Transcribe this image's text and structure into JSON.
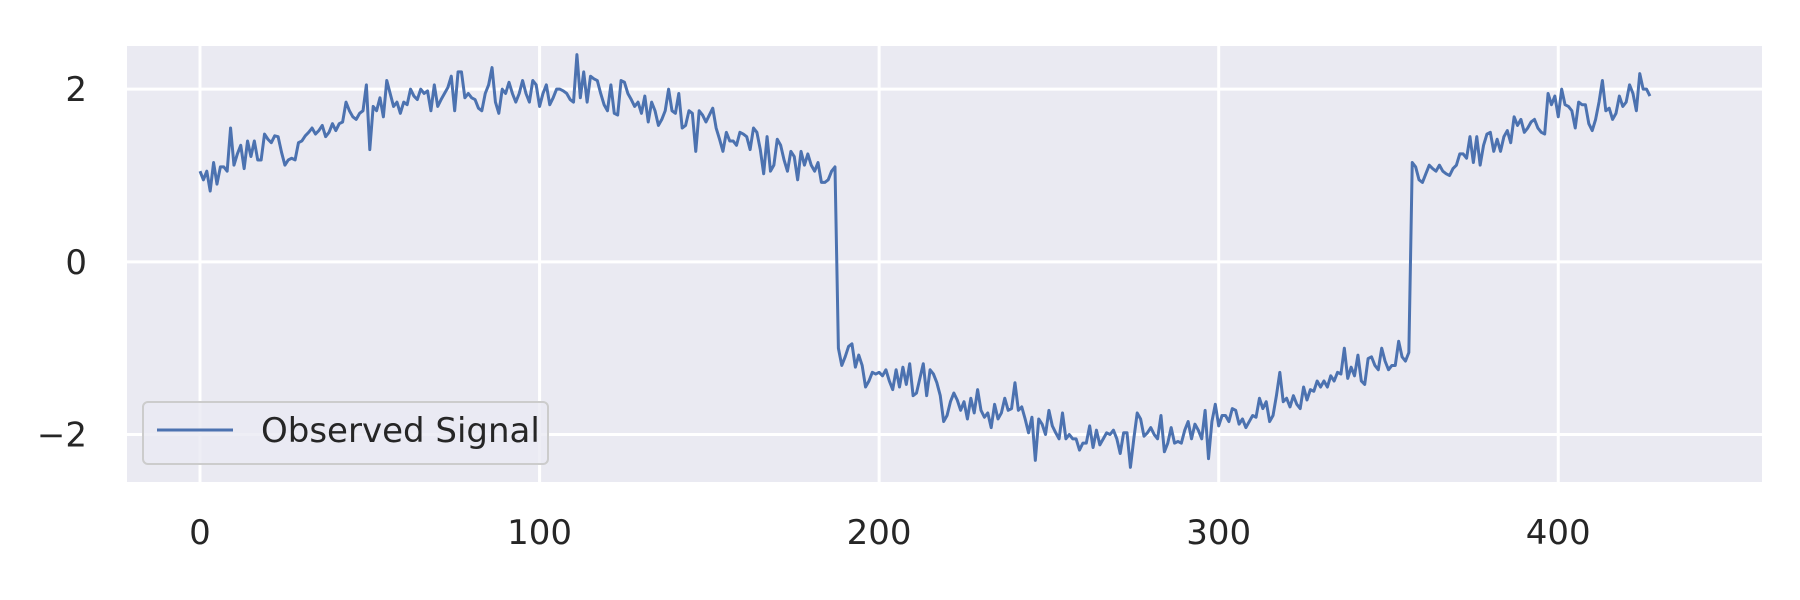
{
  "colors": {
    "plot_background": "#eaeaf2",
    "grid": "#ffffff",
    "series": "#4c72b0",
    "text": "#262626",
    "legend_border": "#cccccc"
  },
  "chart_data": {
    "type": "line",
    "title": "",
    "xlabel": "",
    "ylabel": "",
    "xlim": [
      -21.5,
      460
    ],
    "ylim": [
      -2.55,
      2.5
    ],
    "grid": true,
    "legend_position": "lower-left",
    "x_ticks": [
      {
        "value": 0,
        "label": "0"
      },
      {
        "value": 100,
        "label": "100"
      },
      {
        "value": 200,
        "label": "200"
      },
      {
        "value": 300,
        "label": "300"
      },
      {
        "value": 400,
        "label": "400"
      }
    ],
    "y_ticks": [
      {
        "value": -2,
        "label": "−2"
      },
      {
        "value": 0,
        "label": "0"
      },
      {
        "value": 2,
        "label": "2"
      }
    ],
    "series": [
      {
        "name": "Observed Signal",
        "x_start": 0,
        "x_step": 1,
        "values": [
          1.05,
          0.95,
          1.05,
          0.82,
          1.15,
          0.9,
          1.1,
          1.1,
          1.05,
          1.55,
          1.12,
          1.25,
          1.35,
          1.08,
          1.4,
          1.22,
          1.4,
          1.18,
          1.18,
          1.48,
          1.42,
          1.38,
          1.46,
          1.45,
          1.27,
          1.12,
          1.18,
          1.2,
          1.18,
          1.38,
          1.4,
          1.46,
          1.5,
          1.55,
          1.48,
          1.52,
          1.58,
          1.45,
          1.5,
          1.6,
          1.52,
          1.6,
          1.62,
          1.85,
          1.75,
          1.68,
          1.65,
          1.72,
          1.75,
          2.05,
          1.3,
          1.8,
          1.75,
          1.9,
          1.68,
          2.1,
          1.95,
          1.8,
          1.85,
          1.72,
          1.85,
          1.82,
          2.0,
          1.92,
          1.88,
          2.0,
          1.95,
          1.98,
          1.75,
          2.05,
          1.8,
          1.88,
          1.95,
          2.02,
          2.15,
          1.75,
          2.2,
          2.2,
          1.9,
          1.95,
          1.9,
          1.88,
          1.78,
          1.75,
          1.95,
          2.05,
          2.25,
          1.85,
          1.72,
          2.0,
          1.95,
          2.08,
          1.95,
          1.85,
          1.95,
          2.1,
          1.95,
          1.85,
          2.1,
          2.05,
          1.8,
          1.95,
          2.05,
          1.82,
          1.9,
          2.0,
          2.0,
          1.98,
          1.95,
          1.88,
          1.85,
          2.4,
          1.9,
          2.2,
          1.85,
          2.15,
          2.12,
          2.1,
          1.95,
          1.82,
          1.75,
          2.05,
          1.72,
          1.7,
          2.1,
          2.08,
          1.95,
          1.88,
          1.8,
          1.85,
          1.72,
          1.92,
          1.62,
          1.85,
          1.75,
          1.58,
          1.65,
          1.75,
          2.0,
          1.75,
          1.72,
          1.95,
          1.55,
          1.58,
          1.75,
          1.72,
          1.28,
          1.75,
          1.7,
          1.62,
          1.7,
          1.78,
          1.55,
          1.42,
          1.28,
          1.5,
          1.4,
          1.4,
          1.35,
          1.5,
          1.48,
          1.45,
          1.3,
          1.55,
          1.5,
          1.3,
          1.02,
          1.45,
          1.05,
          1.12,
          1.42,
          1.35,
          1.18,
          1.05,
          1.28,
          1.22,
          0.95,
          1.28,
          1.12,
          1.25,
          1.12,
          1.05,
          1.15,
          0.92,
          0.92,
          0.95,
          1.05,
          1.1,
          -1.0,
          -1.2,
          -1.1,
          -0.98,
          -0.95,
          -1.22,
          -1.08,
          -1.2,
          -1.45,
          -1.38,
          -1.28,
          -1.3,
          -1.28,
          -1.32,
          -1.25,
          -1.38,
          -1.48,
          -1.25,
          -1.45,
          -1.22,
          -1.42,
          -1.18,
          -1.55,
          -1.52,
          -1.35,
          -1.18,
          -1.55,
          -1.25,
          -1.3,
          -1.4,
          -1.55,
          -1.85,
          -1.78,
          -1.62,
          -1.52,
          -1.6,
          -1.72,
          -1.62,
          -1.82,
          -1.58,
          -1.75,
          -1.48,
          -1.72,
          -1.8,
          -1.75,
          -1.92,
          -1.65,
          -1.82,
          -1.75,
          -1.58,
          -1.72,
          -1.7,
          -1.4,
          -1.72,
          -1.68,
          -1.82,
          -1.98,
          -1.8,
          -2.3,
          -1.82,
          -1.88,
          -2.0,
          -1.72,
          -1.9,
          -1.98,
          -2.05,
          -1.75,
          -2.05,
          -2.0,
          -2.05,
          -2.05,
          -2.18,
          -2.1,
          -2.1,
          -1.9,
          -2.15,
          -1.95,
          -2.12,
          -2.05,
          -1.98,
          -2.0,
          -1.95,
          -2.05,
          -2.22,
          -1.98,
          -1.98,
          -2.38,
          -2.05,
          -1.75,
          -1.82,
          -2.02,
          -1.98,
          -1.92,
          -2.0,
          -2.05,
          -1.78,
          -2.2,
          -2.1,
          -1.92,
          -2.1,
          -2.08,
          -2.1,
          -1.95,
          -1.85,
          -2.05,
          -1.88,
          -1.95,
          -2.05,
          -1.72,
          -2.28,
          -1.85,
          -1.65,
          -1.9,
          -1.78,
          -1.78,
          -1.85,
          -1.7,
          -1.72,
          -1.88,
          -1.82,
          -1.92,
          -1.85,
          -1.78,
          -1.8,
          -1.58,
          -1.7,
          -1.62,
          -1.85,
          -1.78,
          -1.55,
          -1.28,
          -1.62,
          -1.58,
          -1.68,
          -1.55,
          -1.65,
          -1.7,
          -1.45,
          -1.6,
          -1.48,
          -1.5,
          -1.38,
          -1.45,
          -1.38,
          -1.45,
          -1.32,
          -1.38,
          -1.28,
          -1.3,
          -1.0,
          -1.35,
          -1.22,
          -1.32,
          -1.08,
          -1.38,
          -1.42,
          -1.12,
          -1.1,
          -1.2,
          -1.25,
          -1.0,
          -1.15,
          -1.25,
          -1.2,
          -1.2,
          -0.92,
          -1.1,
          -1.15,
          -1.05,
          1.15,
          1.1,
          0.95,
          0.92,
          1.02,
          1.12,
          1.08,
          1.05,
          1.12,
          1.05,
          1.02,
          1.0,
          1.08,
          1.12,
          1.25,
          1.25,
          1.2,
          1.45,
          1.15,
          1.45,
          1.12,
          1.35,
          1.48,
          1.5,
          1.28,
          1.42,
          1.28,
          1.45,
          1.52,
          1.38,
          1.68,
          1.58,
          1.65,
          1.5,
          1.55,
          1.62,
          1.65,
          1.55,
          1.5,
          1.48,
          1.95,
          1.82,
          1.92,
          1.68,
          2.0,
          1.82,
          1.8,
          1.75,
          1.55,
          1.85,
          1.82,
          1.82,
          1.6,
          1.52,
          1.65,
          1.85,
          2.1,
          1.75,
          1.78,
          1.65,
          1.72,
          1.92,
          1.8,
          1.85,
          2.05,
          1.95,
          1.75,
          2.18,
          2.0,
          2.0,
          1.92
        ]
      }
    ]
  }
}
